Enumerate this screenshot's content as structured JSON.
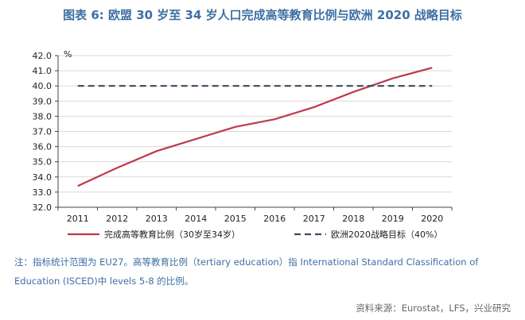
{
  "title": "图表 6: 欧盟 30 岁至 34 岁人口完成高等教育比例与欧洲 2020 战略目标",
  "note": "注：指标统计范围为 EU27。高等教育比例（tertiary education）指 International Standard Classification of Education (ISCED)中 levels 5-8 的比例。",
  "source": "资料来源：Eurostat，LFS，兴业研究",
  "chart_data": {
    "type": "line",
    "ylabel": "%",
    "categories": [
      "2011",
      "2012",
      "2013",
      "2014",
      "2015",
      "2016",
      "2017",
      "2018",
      "2019",
      "2020"
    ],
    "ylim": [
      32,
      42
    ],
    "yticks": [
      "32.0",
      "33.0",
      "34.0",
      "35.0",
      "36.0",
      "37.0",
      "38.0",
      "39.0",
      "40.0",
      "41.0",
      "42.0"
    ],
    "grid": true,
    "legend": "bottom",
    "series": [
      {
        "name": "完成高等教育比例（30岁至34岁）",
        "values": [
          33.4,
          34.6,
          35.7,
          36.5,
          37.3,
          37.8,
          38.6,
          39.6,
          40.5,
          41.2
        ],
        "color": "#c0394b",
        "style": "solid"
      },
      {
        "name": "欧洲2020战略目标（40%）",
        "values": [
          40,
          40,
          40,
          40,
          40,
          40,
          40,
          40,
          40,
          40
        ],
        "color": "#3b4a5c",
        "style": "dashed"
      }
    ]
  }
}
